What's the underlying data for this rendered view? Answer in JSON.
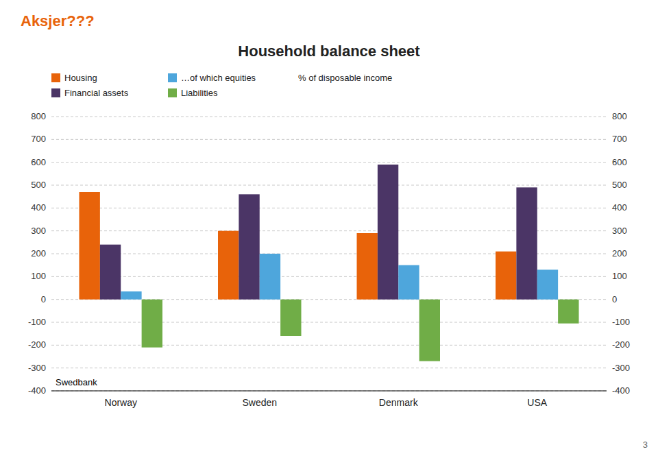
{
  "chart_data": {
    "type": "bar",
    "title": "Household balance sheet",
    "subtitle": "Aksjer???",
    "y_label": "% of disposable income",
    "annotations": [
      "Swedbank",
      "3"
    ],
    "categories": [
      "Norway",
      "Sweden",
      "Denmark",
      "USA"
    ],
    "series": [
      {
        "name": "Housing",
        "color": "#E8630A",
        "values": [
          470,
          300,
          290,
          210
        ]
      },
      {
        "name": "Financial assets",
        "color": "#4B3566",
        "values": [
          240,
          460,
          590,
          490
        ]
      },
      {
        "name": "…of which equities",
        "color": "#4EA6DC",
        "values": [
          35,
          200,
          150,
          130
        ]
      },
      {
        "name": "Liabilities",
        "color": "#70AD47",
        "values": [
          -210,
          -160,
          -270,
          -105
        ]
      }
    ],
    "ylim": [
      -400,
      800
    ],
    "yticks": [
      -400,
      -300,
      -200,
      -100,
      0,
      100,
      200,
      300,
      400,
      500,
      600,
      700,
      800
    ],
    "grid": true,
    "legend": "top-left"
  }
}
